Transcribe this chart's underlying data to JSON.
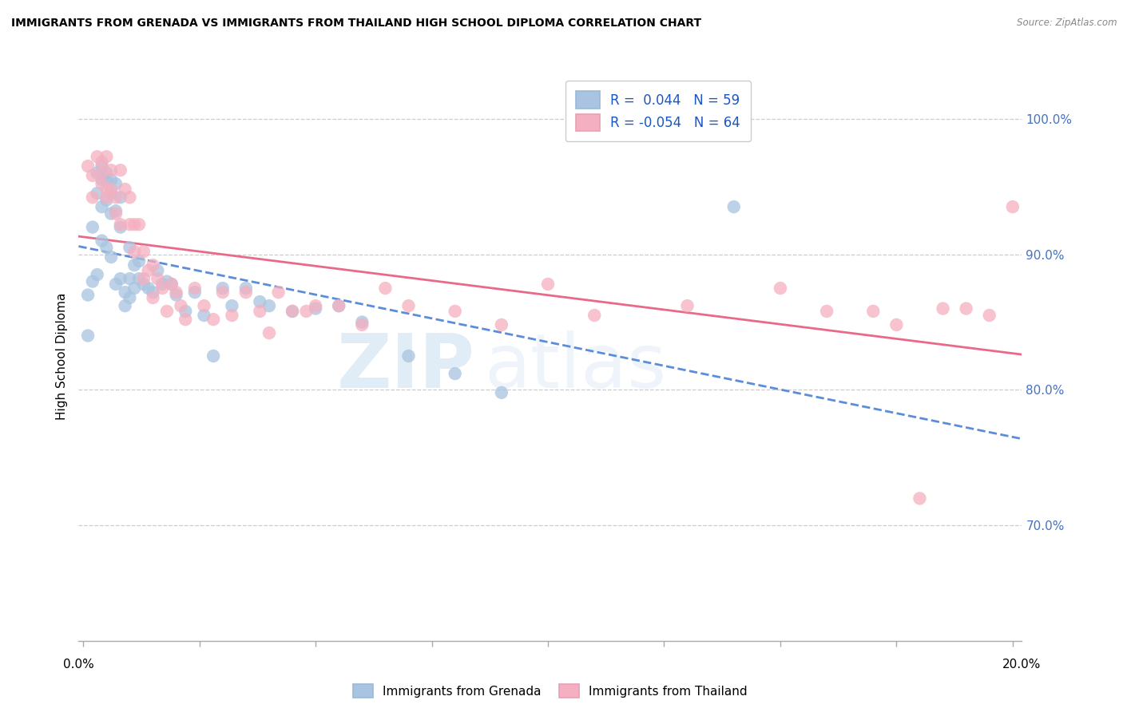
{
  "title": "IMMIGRANTS FROM GRENADA VS IMMIGRANTS FROM THAILAND HIGH SCHOOL DIPLOMA CORRELATION CHART",
  "source": "Source: ZipAtlas.com",
  "ylabel": "High School Diploma",
  "legend_r1": "R =  0.044   N = 59",
  "legend_r2": "R = -0.054   N = 64",
  "legend_label1": "Immigrants from Grenada",
  "legend_label2": "Immigrants from Thailand",
  "color_blue": "#a8c4e0",
  "color_pink": "#f4afc0",
  "trendline_blue": "#5b8dd9",
  "trendline_pink": "#e86a8a",
  "watermark_zip": "ZIP",
  "watermark_atlas": "atlas",
  "ymin": 0.615,
  "ymax": 1.035,
  "xmin": -0.001,
  "xmax": 0.202,
  "ytick_vals": [
    0.7,
    0.8,
    0.9,
    1.0
  ],
  "ytick_labels_right": [
    "70.0%",
    "80.0%",
    "90.0%",
    "100.0%"
  ],
  "xtick_positions": [
    0.0,
    0.025,
    0.05,
    0.075,
    0.1,
    0.125,
    0.15,
    0.175,
    0.2
  ],
  "grenada_x": [
    0.001,
    0.001,
    0.002,
    0.002,
    0.003,
    0.003,
    0.003,
    0.004,
    0.004,
    0.004,
    0.004,
    0.005,
    0.005,
    0.005,
    0.005,
    0.006,
    0.006,
    0.006,
    0.006,
    0.007,
    0.007,
    0.007,
    0.008,
    0.008,
    0.008,
    0.009,
    0.009,
    0.01,
    0.01,
    0.01,
    0.011,
    0.011,
    0.012,
    0.012,
    0.013,
    0.014,
    0.015,
    0.016,
    0.017,
    0.018,
    0.019,
    0.02,
    0.022,
    0.024,
    0.026,
    0.028,
    0.03,
    0.032,
    0.035,
    0.038,
    0.04,
    0.045,
    0.05,
    0.055,
    0.06,
    0.07,
    0.08,
    0.09,
    0.14
  ],
  "grenada_y": [
    0.87,
    0.84,
    0.92,
    0.88,
    0.96,
    0.945,
    0.885,
    0.965,
    0.955,
    0.935,
    0.91,
    0.96,
    0.955,
    0.94,
    0.905,
    0.955,
    0.945,
    0.93,
    0.898,
    0.952,
    0.932,
    0.878,
    0.942,
    0.92,
    0.882,
    0.872,
    0.862,
    0.905,
    0.882,
    0.868,
    0.892,
    0.875,
    0.895,
    0.882,
    0.878,
    0.875,
    0.872,
    0.888,
    0.878,
    0.88,
    0.878,
    0.87,
    0.858,
    0.872,
    0.855,
    0.825,
    0.875,
    0.862,
    0.875,
    0.865,
    0.862,
    0.858,
    0.86,
    0.862,
    0.85,
    0.825,
    0.812,
    0.798,
    0.935
  ],
  "thailand_x": [
    0.001,
    0.002,
    0.002,
    0.003,
    0.004,
    0.004,
    0.004,
    0.005,
    0.005,
    0.005,
    0.006,
    0.006,
    0.007,
    0.007,
    0.008,
    0.008,
    0.009,
    0.01,
    0.01,
    0.011,
    0.011,
    0.012,
    0.013,
    0.013,
    0.014,
    0.015,
    0.015,
    0.016,
    0.017,
    0.018,
    0.019,
    0.02,
    0.021,
    0.022,
    0.024,
    0.026,
    0.028,
    0.03,
    0.032,
    0.035,
    0.038,
    0.04,
    0.042,
    0.045,
    0.048,
    0.05,
    0.055,
    0.06,
    0.065,
    0.07,
    0.08,
    0.09,
    0.1,
    0.11,
    0.13,
    0.15,
    0.16,
    0.17,
    0.175,
    0.18,
    0.185,
    0.19,
    0.195,
    0.2
  ],
  "thailand_y": [
    0.965,
    0.958,
    0.942,
    0.972,
    0.968,
    0.96,
    0.952,
    0.972,
    0.948,
    0.942,
    0.962,
    0.948,
    0.942,
    0.93,
    0.962,
    0.922,
    0.948,
    0.942,
    0.922,
    0.922,
    0.902,
    0.922,
    0.902,
    0.882,
    0.888,
    0.892,
    0.868,
    0.882,
    0.875,
    0.858,
    0.878,
    0.872,
    0.862,
    0.852,
    0.875,
    0.862,
    0.852,
    0.872,
    0.855,
    0.872,
    0.858,
    0.842,
    0.872,
    0.858,
    0.858,
    0.862,
    0.862,
    0.848,
    0.875,
    0.862,
    0.858,
    0.848,
    0.878,
    0.855,
    0.862,
    0.875,
    0.858,
    0.858,
    0.848,
    0.72,
    0.86,
    0.86,
    0.855,
    0.935
  ]
}
